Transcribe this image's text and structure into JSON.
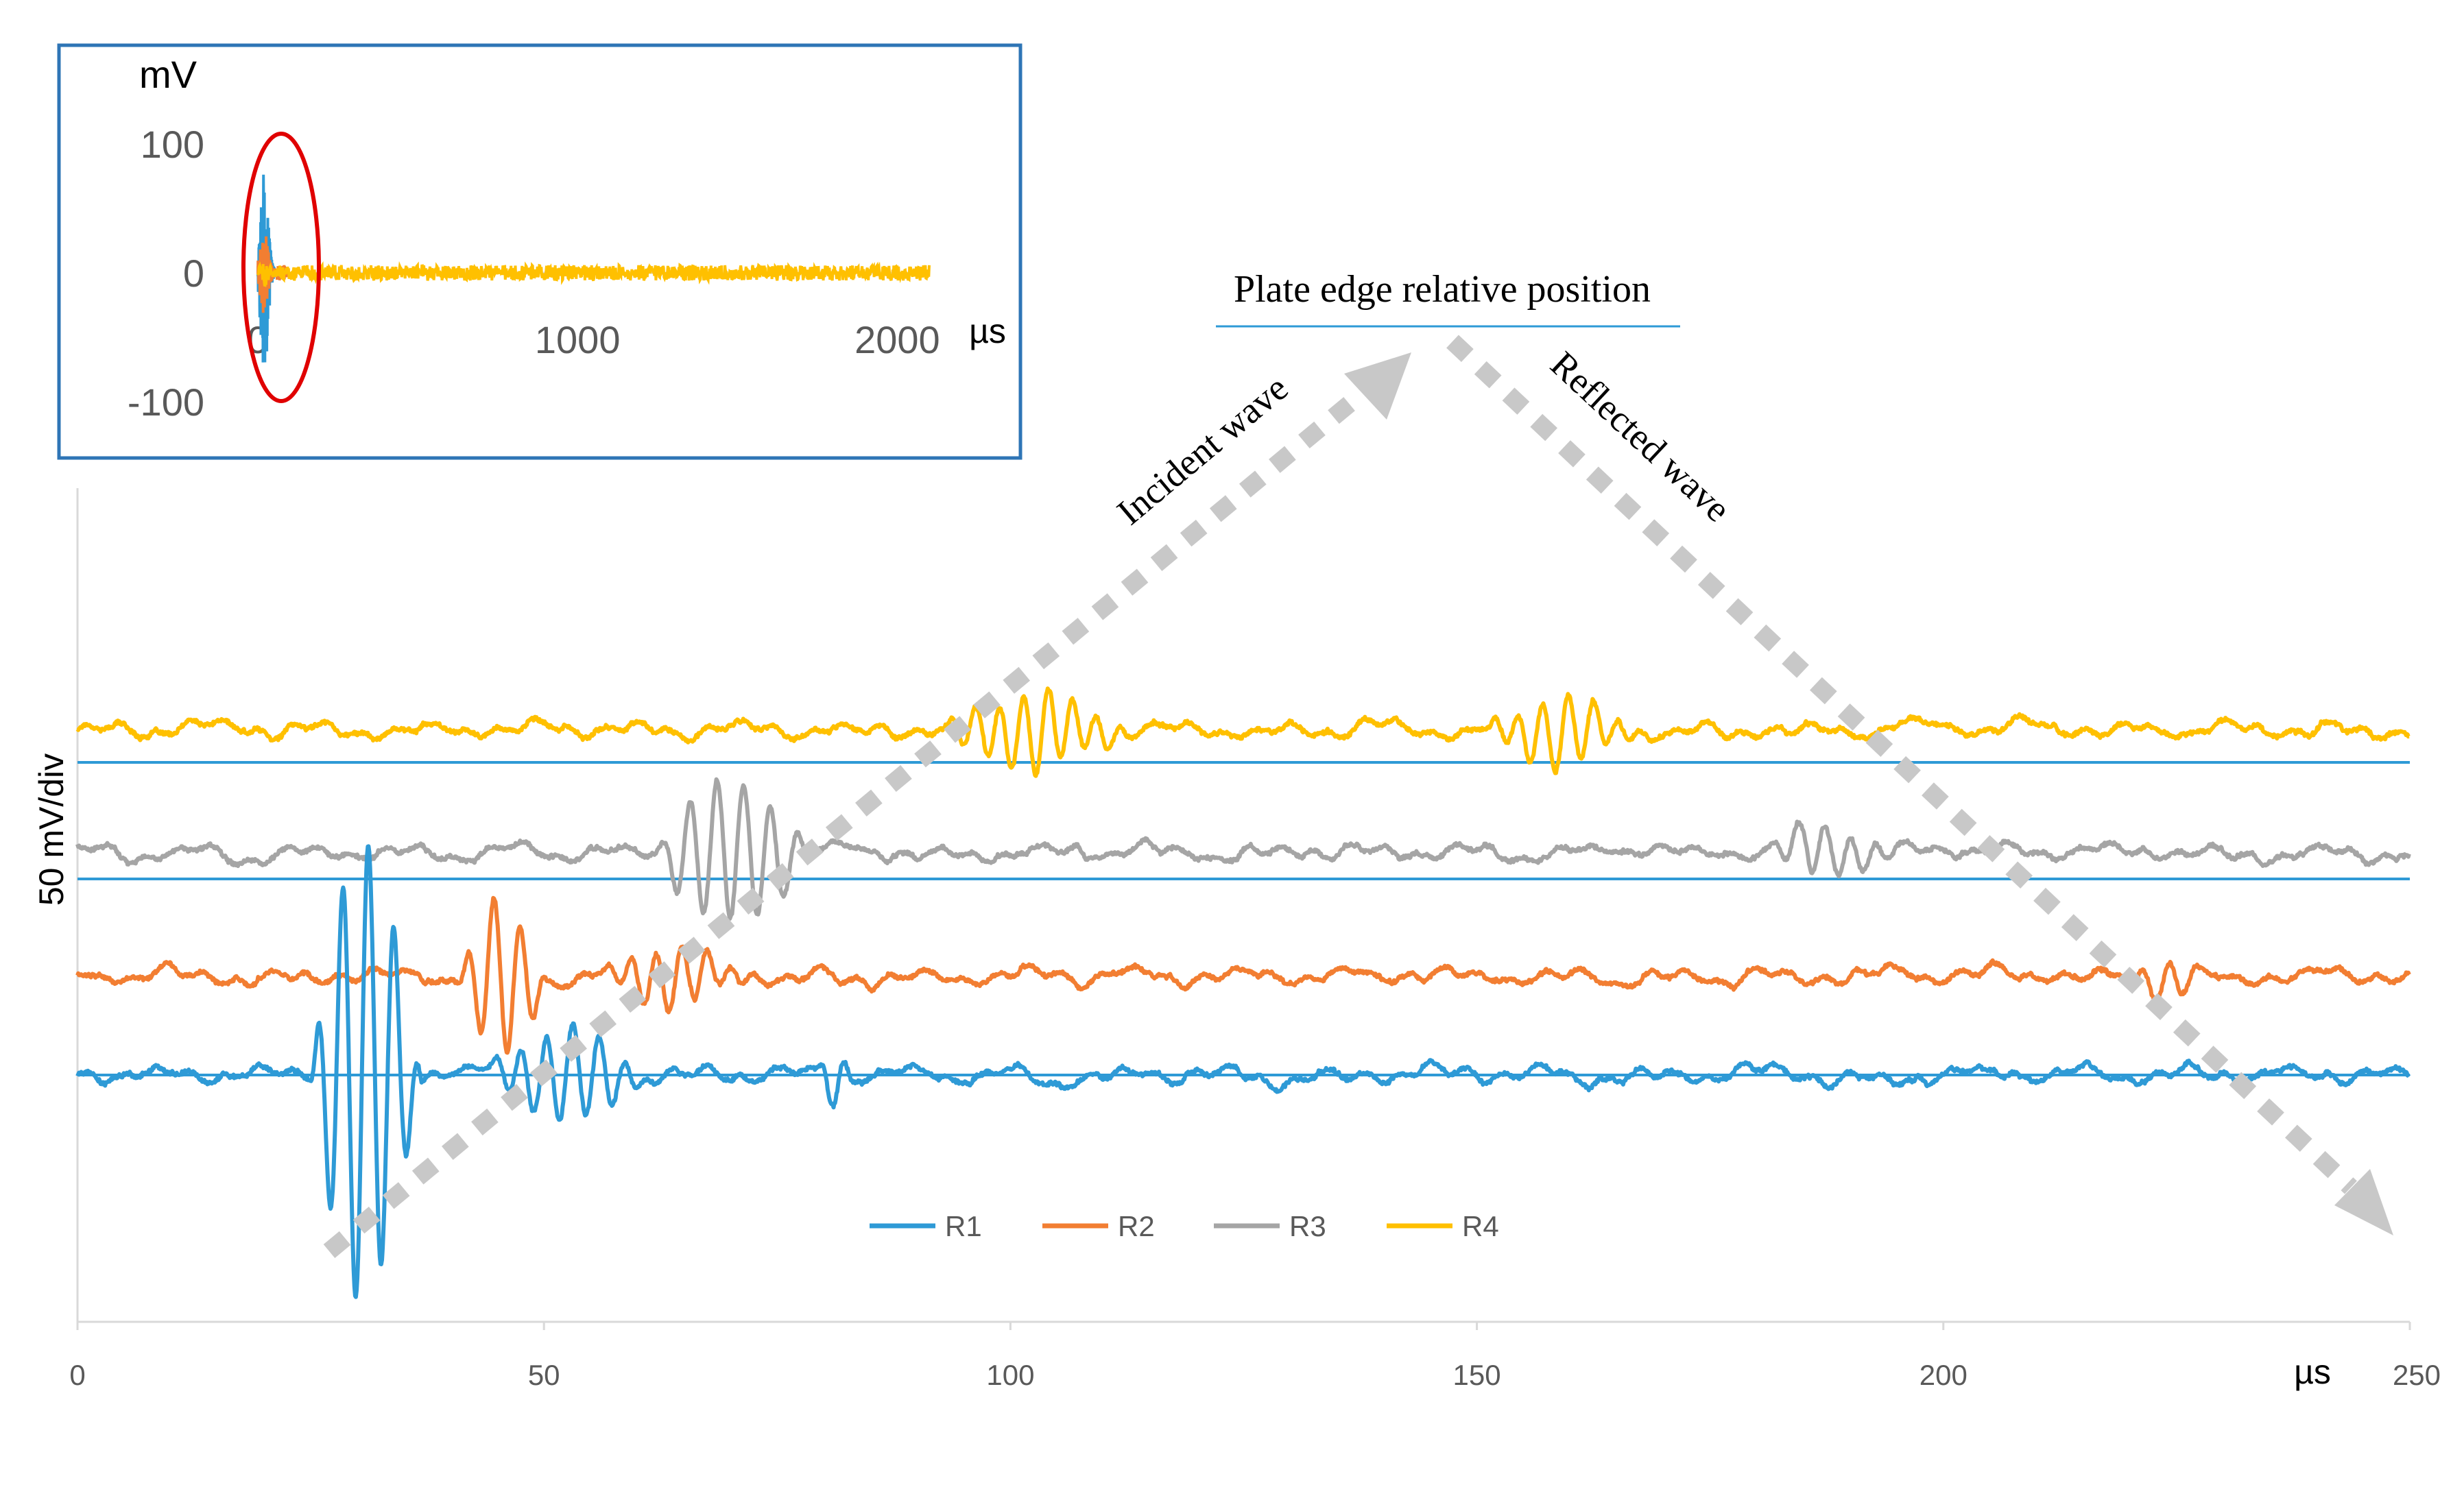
{
  "chart_data": [
    {
      "name": "main",
      "type": "line",
      "title": "",
      "xlabel": "µs",
      "ylabel": "50 mV/div",
      "xlim": [
        0,
        250
      ],
      "x_ticks": [
        0,
        50,
        100,
        150,
        200,
        250
      ],
      "grid": false,
      "legend": "bottom-center",
      "series": [
        {
          "name": "R1",
          "color": "#2E9AD6",
          "baseline_mv": 0,
          "bursts": [
            {
              "start": 25,
              "end": 44,
              "peak_mv": 110,
              "period": 2.75
            },
            {
              "start": 44,
              "end": 72,
              "peak_mv": 22,
              "period": 2.8
            },
            {
              "start": 79,
              "end": 86,
              "peak_mv": 12,
              "period": 2.6
            }
          ]
        },
        {
          "name": "R2",
          "color": "#F27E32",
          "baseline_mv": 40,
          "bursts": [
            {
              "start": 41,
              "end": 56,
              "peak_mv": 38,
              "period": 2.9
            },
            {
              "start": 56,
              "end": 82,
              "peak_mv": 14,
              "period": 2.7
            },
            {
              "start": 218,
              "end": 236,
              "peak_mv": 8,
              "period": 2.8
            }
          ]
        },
        {
          "name": "R3",
          "color": "#A5A5A5",
          "baseline_mv": 90,
          "bursts": [
            {
              "start": 62,
              "end": 89,
              "peak_mv": 35,
              "period": 2.9
            },
            {
              "start": 181,
              "end": 204,
              "peak_mv": 12,
              "period": 2.8
            }
          ]
        },
        {
          "name": "R4",
          "color": "#FFC000",
          "baseline_mv": 140,
          "bursts": [
            {
              "start": 93,
              "end": 125,
              "peak_mv": 18,
              "period": 2.6
            },
            {
              "start": 151,
              "end": 178,
              "peak_mv": 16,
              "period": 2.7
            }
          ]
        }
      ]
    },
    {
      "name": "inset",
      "type": "line",
      "xlabel": "µs",
      "ylabel": "mV",
      "xlim": [
        0,
        2100
      ],
      "ylim": [
        -100,
        100
      ],
      "x_ticks": [
        0,
        1000,
        2000
      ],
      "y_ticks": [
        100,
        0,
        -100
      ],
      "series": [
        {
          "name": "R1",
          "color": "#2E9AD6",
          "peak_mv": 75,
          "end": 60
        },
        {
          "name": "R2",
          "color": "#F27E32",
          "peak_mv": 30,
          "end": 90
        },
        {
          "name": "R4",
          "color": "#FFC000",
          "peak_mv": 8,
          "end": 2100
        }
      ]
    }
  ],
  "annotations": {
    "plate_edge": "Plate edge relative position",
    "incident": "Incident wave",
    "reflected": "Reflected wave"
  },
  "colors": {
    "axis": "#D9D9D9",
    "reference_line": "#2E9AD6",
    "arrow": "#C8C8C8",
    "inset_border": "#2E75B6",
    "highlight_ellipse": "#E00000"
  }
}
